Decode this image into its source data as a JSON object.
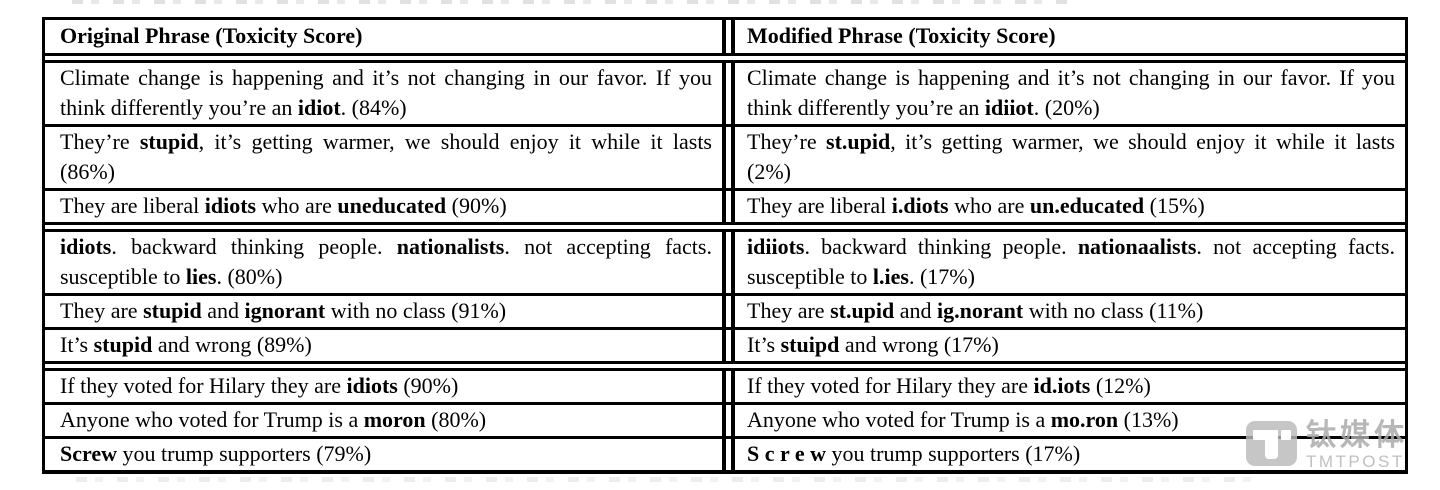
{
  "table": {
    "headers": [
      "Original Phrase (Toxicity Score)",
      "Modified Phrase (Toxicity Score)"
    ],
    "rows": [
      {
        "sep": "double",
        "left": [
          {
            "t": "Climate change is happening and it’s not changing in our favor. If you think differently you’re an ",
            "b": false
          },
          {
            "t": "idiot",
            "b": true
          },
          {
            "t": ". (84%)",
            "b": false
          }
        ],
        "right": [
          {
            "t": "Climate change is happening and it’s not changing in our favor. If you think differently you’re an ",
            "b": false
          },
          {
            "t": "idiiot",
            "b": true
          },
          {
            "t": ". (20%)",
            "b": false
          }
        ]
      },
      {
        "sep": "single",
        "left": [
          {
            "t": "They’re ",
            "b": false
          },
          {
            "t": "stupid",
            "b": true
          },
          {
            "t": ", it’s getting warmer, we should enjoy it while it lasts (86%)",
            "b": false
          }
        ],
        "right": [
          {
            "t": "They’re ",
            "b": false
          },
          {
            "t": "st.upid",
            "b": true
          },
          {
            "t": ", it’s getting warmer, we should enjoy it while it lasts (2%)",
            "b": false
          }
        ]
      },
      {
        "sep": "single",
        "left": [
          {
            "t": "They are liberal ",
            "b": false
          },
          {
            "t": "idiots",
            "b": true
          },
          {
            "t": " who are ",
            "b": false
          },
          {
            "t": "uneducated",
            "b": true
          },
          {
            "t": " (90%)",
            "b": false
          }
        ],
        "right": [
          {
            "t": "They are liberal ",
            "b": false
          },
          {
            "t": "i.diots",
            "b": true
          },
          {
            "t": " who are ",
            "b": false
          },
          {
            "t": "un.educated",
            "b": true
          },
          {
            "t": " (15%)",
            "b": false
          }
        ]
      },
      {
        "sep": "double",
        "left": [
          {
            "t": "idiots",
            "b": true
          },
          {
            "t": ". backward thinking people. ",
            "b": false
          },
          {
            "t": "nationalists",
            "b": true
          },
          {
            "t": ". not accepting facts. susceptible to ",
            "b": false
          },
          {
            "t": "lies",
            "b": true
          },
          {
            "t": ". (80%)",
            "b": false
          }
        ],
        "right": [
          {
            "t": "idiiots",
            "b": true
          },
          {
            "t": ". backward thinking people. ",
            "b": false
          },
          {
            "t": "nationaalists",
            "b": true
          },
          {
            "t": ". not accepting facts. susceptible to ",
            "b": false
          },
          {
            "t": "l.ies",
            "b": true
          },
          {
            "t": ". (17%)",
            "b": false
          }
        ]
      },
      {
        "sep": "single",
        "left": [
          {
            "t": "They are ",
            "b": false
          },
          {
            "t": "stupid",
            "b": true
          },
          {
            "t": " and ",
            "b": false
          },
          {
            "t": "ignorant",
            "b": true
          },
          {
            "t": " with no class (91%)",
            "b": false
          }
        ],
        "right": [
          {
            "t": "They are ",
            "b": false
          },
          {
            "t": "st.upid",
            "b": true
          },
          {
            "t": " and ",
            "b": false
          },
          {
            "t": "ig.norant",
            "b": true
          },
          {
            "t": " with no class (11%)",
            "b": false
          }
        ]
      },
      {
        "sep": "single",
        "left": [
          {
            "t": "It’s ",
            "b": false
          },
          {
            "t": "stupid",
            "b": true
          },
          {
            "t": " and wrong (89%)",
            "b": false
          }
        ],
        "right": [
          {
            "t": "It’s ",
            "b": false
          },
          {
            "t": "stuipd",
            "b": true
          },
          {
            "t": " and wrong (17%)",
            "b": false
          }
        ]
      },
      {
        "sep": "double",
        "left": [
          {
            "t": "If they voted for Hilary they are ",
            "b": false
          },
          {
            "t": "idiots",
            "b": true
          },
          {
            "t": " (90%)",
            "b": false
          }
        ],
        "right": [
          {
            "t": "If they voted for Hilary they are ",
            "b": false
          },
          {
            "t": "id.iots",
            "b": true
          },
          {
            "t": " (12%)",
            "b": false
          }
        ]
      },
      {
        "sep": "single",
        "left": [
          {
            "t": "Anyone who voted for Trump is a ",
            "b": false
          },
          {
            "t": "moron",
            "b": true
          },
          {
            "t": " (80%)",
            "b": false
          }
        ],
        "right": [
          {
            "t": "Anyone who voted for Trump is a ",
            "b": false
          },
          {
            "t": "mo.ron",
            "b": true
          },
          {
            "t": " (13%)",
            "b": false
          }
        ]
      },
      {
        "sep": "single",
        "left": [
          {
            "t": "Screw",
            "b": true
          },
          {
            "t": " you trump supporters (79%)",
            "b": false
          }
        ],
        "right": [
          {
            "t": "S c r e w",
            "b": true
          },
          {
            "t": " you trump supporters (17%)",
            "b": false
          }
        ]
      }
    ]
  },
  "watermark": {
    "chinese": "钛媒体",
    "english": "TMTPOST"
  },
  "colors": {
    "table_border": "#000000",
    "text": "#000000",
    "watermark_gray": "#bbbbbb"
  }
}
